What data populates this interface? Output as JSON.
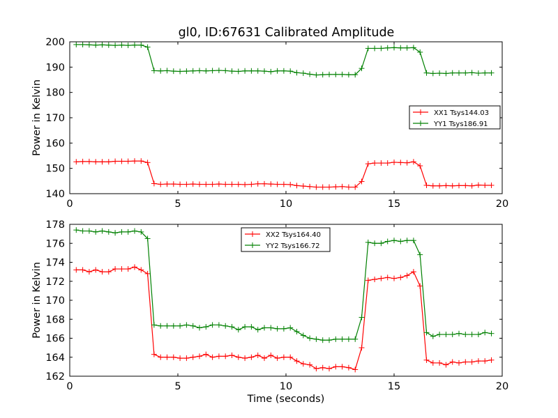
{
  "figure_title": "gl0, ID:67631 Calibrated Amplitude",
  "chart_data": [
    {
      "type": "line",
      "title": "gl0, ID:67631 Calibrated Amplitude",
      "xlabel": "",
      "ylabel": "Power in Kelvin",
      "xlim": [
        0,
        20
      ],
      "ylim": [
        140,
        200
      ],
      "xticks": [
        0,
        5,
        10,
        15,
        20
      ],
      "yticks": [
        140,
        150,
        160,
        170,
        180,
        190,
        200
      ],
      "grid": false,
      "legend_position": "center-right",
      "x": [
        0.3,
        0.6,
        0.9,
        1.2,
        1.5,
        1.8,
        2.1,
        2.4,
        2.7,
        3.0,
        3.3,
        3.6,
        3.9,
        4.2,
        4.5,
        4.8,
        5.1,
        5.4,
        5.7,
        6.0,
        6.3,
        6.6,
        6.9,
        7.2,
        7.5,
        7.8,
        8.1,
        8.4,
        8.7,
        9.0,
        9.3,
        9.6,
        9.9,
        10.2,
        10.5,
        10.8,
        11.1,
        11.4,
        11.7,
        12.0,
        12.3,
        12.6,
        12.9,
        13.2,
        13.5,
        13.8,
        14.1,
        14.4,
        14.7,
        15.0,
        15.3,
        15.6,
        15.9,
        16.2,
        16.5,
        16.8,
        17.1,
        17.4,
        17.7,
        18.0,
        18.3,
        18.6,
        18.9,
        19.2,
        19.5
      ],
      "series": [
        {
          "name": "XX1 Tsys144.03",
          "color": "#ff0000",
          "values": [
            152.6,
            152.7,
            152.7,
            152.6,
            152.6,
            152.6,
            152.8,
            152.8,
            152.8,
            152.9,
            152.9,
            152.3,
            144.0,
            143.7,
            143.8,
            143.8,
            143.7,
            143.7,
            143.8,
            143.7,
            143.7,
            143.7,
            143.8,
            143.7,
            143.7,
            143.7,
            143.6,
            143.7,
            143.9,
            143.9,
            143.8,
            143.7,
            143.7,
            143.6,
            143.2,
            143.0,
            142.8,
            142.6,
            142.6,
            142.6,
            142.7,
            142.8,
            142.6,
            142.6,
            144.8,
            151.8,
            152.1,
            152.1,
            152.1,
            152.4,
            152.3,
            152.2,
            152.6,
            151.0,
            143.3,
            143.1,
            143.1,
            143.2,
            143.1,
            143.2,
            143.2,
            143.1,
            143.4,
            143.3,
            143.3
          ]
        },
        {
          "name": "YY1 Tsys186.91",
          "color": "#008000",
          "values": [
            198.9,
            198.9,
            198.8,
            198.7,
            198.8,
            198.7,
            198.6,
            198.7,
            198.6,
            198.7,
            198.7,
            197.9,
            188.6,
            188.5,
            188.6,
            188.4,
            188.3,
            188.4,
            188.5,
            188.6,
            188.5,
            188.6,
            188.7,
            188.6,
            188.4,
            188.3,
            188.5,
            188.5,
            188.5,
            188.4,
            188.2,
            188.5,
            188.5,
            188.4,
            187.8,
            187.6,
            187.2,
            186.9,
            187.0,
            187.1,
            187.1,
            187.1,
            187.0,
            187.0,
            189.5,
            197.4,
            197.4,
            197.4,
            197.6,
            197.7,
            197.6,
            197.6,
            197.7,
            195.9,
            187.7,
            187.5,
            187.6,
            187.5,
            187.7,
            187.7,
            187.7,
            187.8,
            187.6,
            187.7,
            187.7
          ]
        }
      ]
    },
    {
      "type": "line",
      "title": "",
      "xlabel": "Time (seconds)",
      "ylabel": "Power in Kelvin",
      "xlim": [
        0,
        20
      ],
      "ylim": [
        162,
        178
      ],
      "xticks": [
        0,
        5,
        10,
        15,
        20
      ],
      "yticks": [
        162,
        164,
        166,
        168,
        170,
        172,
        174,
        176,
        178
      ],
      "grid": false,
      "legend_position": "top-center",
      "x": [
        0.3,
        0.6,
        0.9,
        1.2,
        1.5,
        1.8,
        2.1,
        2.4,
        2.7,
        3.0,
        3.3,
        3.6,
        3.9,
        4.2,
        4.5,
        4.8,
        5.1,
        5.4,
        5.7,
        6.0,
        6.3,
        6.6,
        6.9,
        7.2,
        7.5,
        7.8,
        8.1,
        8.4,
        8.7,
        9.0,
        9.3,
        9.6,
        9.9,
        10.2,
        10.5,
        10.8,
        11.1,
        11.4,
        11.7,
        12.0,
        12.3,
        12.6,
        12.9,
        13.2,
        13.5,
        13.8,
        14.1,
        14.4,
        14.7,
        15.0,
        15.3,
        15.6,
        15.9,
        16.2,
        16.5,
        16.8,
        17.1,
        17.4,
        17.7,
        18.0,
        18.3,
        18.6,
        18.9,
        19.2,
        19.5
      ],
      "series": [
        {
          "name": "XX2 Tsys164.40",
          "color": "#ff0000",
          "values": [
            173.2,
            173.2,
            173.0,
            173.2,
            173.0,
            173.0,
            173.3,
            173.3,
            173.3,
            173.5,
            173.2,
            172.8,
            164.3,
            164.0,
            164.0,
            164.0,
            163.9,
            163.9,
            164.0,
            164.1,
            164.3,
            164.0,
            164.1,
            164.1,
            164.2,
            164.0,
            163.9,
            164.0,
            164.2,
            163.9,
            164.2,
            163.9,
            164.0,
            164.0,
            163.6,
            163.3,
            163.2,
            162.8,
            162.9,
            162.8,
            163.0,
            163.0,
            162.9,
            162.7,
            165.0,
            172.1,
            172.2,
            172.3,
            172.4,
            172.3,
            172.4,
            172.6,
            173.0,
            171.5,
            163.7,
            163.4,
            163.4,
            163.2,
            163.5,
            163.4,
            163.5,
            163.5,
            163.6,
            163.6,
            163.7
          ]
        },
        {
          "name": "YY2 Tsys166.72",
          "color": "#008000",
          "values": [
            177.4,
            177.3,
            177.3,
            177.2,
            177.3,
            177.2,
            177.1,
            177.2,
            177.2,
            177.3,
            177.2,
            176.5,
            167.4,
            167.3,
            167.3,
            167.3,
            167.3,
            167.4,
            167.3,
            167.1,
            167.2,
            167.4,
            167.4,
            167.3,
            167.2,
            166.9,
            167.2,
            167.2,
            166.9,
            167.1,
            167.1,
            167.0,
            167.0,
            167.1,
            166.7,
            166.3,
            166.0,
            165.9,
            165.8,
            165.8,
            165.9,
            165.9,
            165.9,
            165.9,
            168.2,
            176.1,
            176.0,
            176.0,
            176.2,
            176.3,
            176.2,
            176.3,
            176.3,
            174.8,
            166.6,
            166.2,
            166.4,
            166.4,
            166.4,
            166.5,
            166.4,
            166.4,
            166.4,
            166.6,
            166.5
          ]
        }
      ]
    }
  ]
}
